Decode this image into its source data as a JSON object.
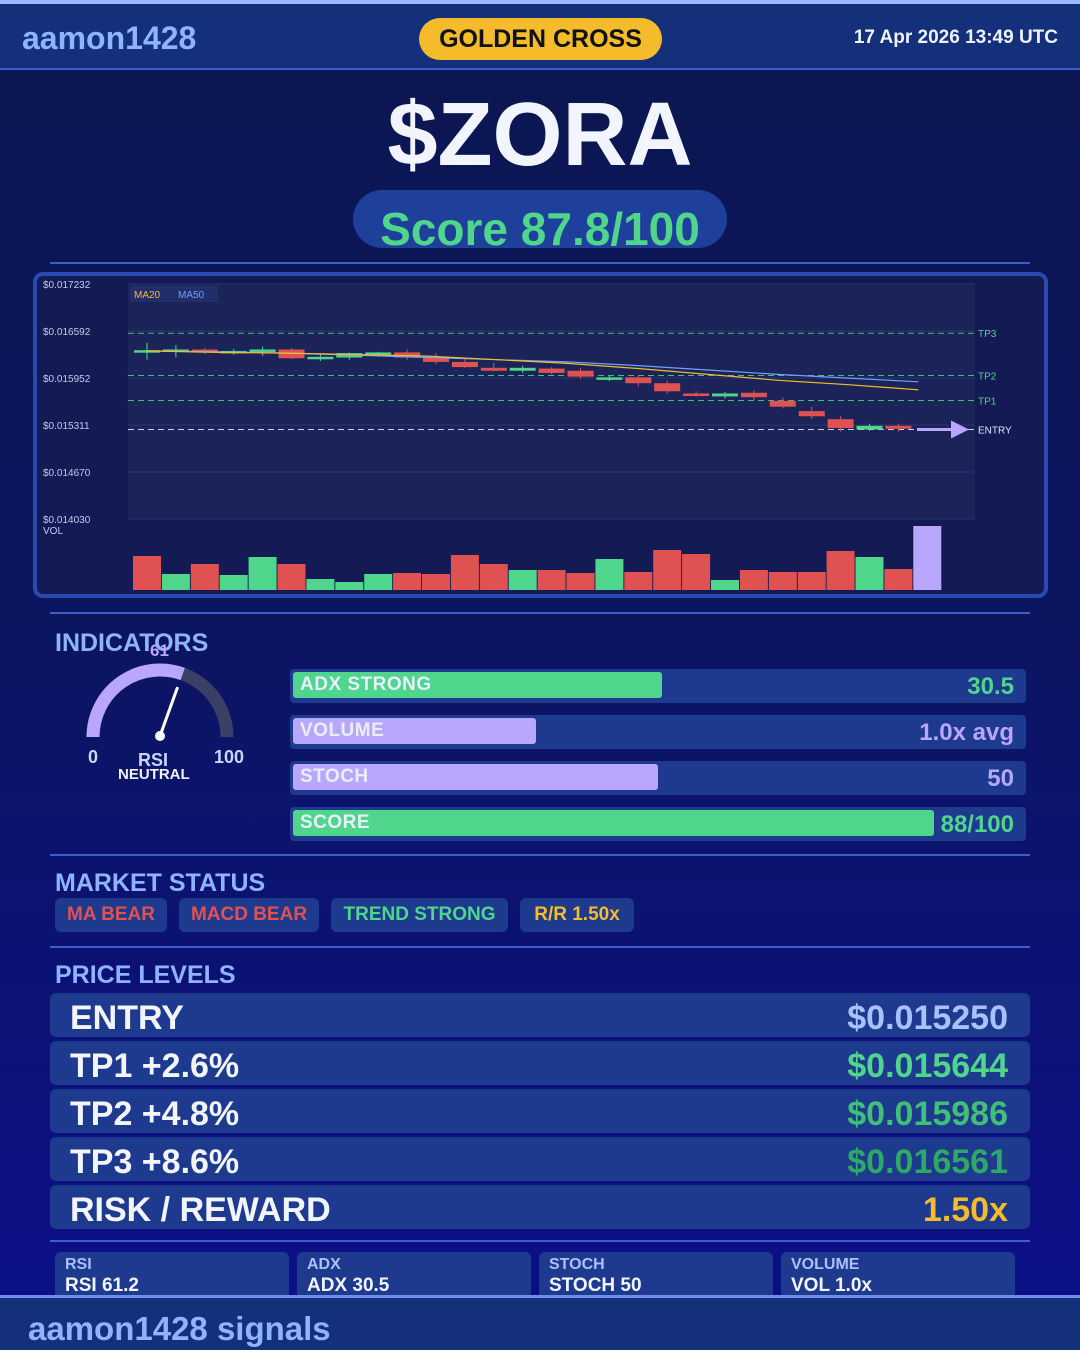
{
  "header": {
    "brand": "aamon1428",
    "signal_badge": "GOLDEN CROSS",
    "datetime": "17 Apr 2026  13:49 UTC"
  },
  "ticker": "$ZORA",
  "score_text": "Score 87.8/100",
  "colors": {
    "accent": "#8fb4ff",
    "green": "#4fd58c",
    "red": "#e05252",
    "yellow": "#f4bc2a",
    "purple": "#b9a6ff"
  },
  "chart_data": {
    "type": "candlestick",
    "y_ticks": [
      "$0.017232",
      "$0.016592",
      "$0.015952",
      "$0.015311",
      "$0.014670",
      "$0.014030"
    ],
    "ylim": [
      0.01403,
      0.017232
    ],
    "legend": [
      "MA20",
      "MA50"
    ],
    "volume_label": "VOL",
    "levels": [
      {
        "name": "TP3",
        "value": 0.016561
      },
      {
        "name": "TP2",
        "value": 0.015986
      },
      {
        "name": "TP1",
        "value": 0.015644
      },
      {
        "name": "ENTRY",
        "value": 0.01525
      }
    ],
    "candles": [
      {
        "o": 0.01633,
        "h": 0.01643,
        "l": 0.0162,
        "c": 0.01633
      },
      {
        "o": 0.01633,
        "h": 0.0164,
        "l": 0.01623,
        "c": 0.01634
      },
      {
        "o": 0.01634,
        "h": 0.01636,
        "l": 0.01628,
        "c": 0.01631
      },
      {
        "o": 0.0163,
        "h": 0.01635,
        "l": 0.01627,
        "c": 0.01632
      },
      {
        "o": 0.01633,
        "h": 0.01638,
        "l": 0.01625,
        "c": 0.01634
      },
      {
        "o": 0.01634,
        "h": 0.01636,
        "l": 0.01621,
        "c": 0.01622
      },
      {
        "o": 0.01622,
        "h": 0.01628,
        "l": 0.01618,
        "c": 0.01624
      },
      {
        "o": 0.01623,
        "h": 0.0163,
        "l": 0.0162,
        "c": 0.01629
      },
      {
        "o": 0.01628,
        "h": 0.01631,
        "l": 0.01624,
        "c": 0.0163
      },
      {
        "o": 0.0163,
        "h": 0.01634,
        "l": 0.0162,
        "c": 0.01623
      },
      {
        "o": 0.01624,
        "h": 0.01629,
        "l": 0.01614,
        "c": 0.01617
      },
      {
        "o": 0.01617,
        "h": 0.01623,
        "l": 0.01609,
        "c": 0.0161
      },
      {
        "o": 0.01609,
        "h": 0.01616,
        "l": 0.01604,
        "c": 0.01605
      },
      {
        "o": 0.01605,
        "h": 0.01612,
        "l": 0.01602,
        "c": 0.01609
      },
      {
        "o": 0.01608,
        "h": 0.0161,
        "l": 0.016,
        "c": 0.01602
      },
      {
        "o": 0.01605,
        "h": 0.01609,
        "l": 0.01594,
        "c": 0.01597
      },
      {
        "o": 0.01594,
        "h": 0.01598,
        "l": 0.01591,
        "c": 0.01596
      },
      {
        "o": 0.01596,
        "h": 0.01599,
        "l": 0.01584,
        "c": 0.01588
      },
      {
        "o": 0.01588,
        "h": 0.01592,
        "l": 0.01574,
        "c": 0.01577
      },
      {
        "o": 0.01574,
        "h": 0.01577,
        "l": 0.0157,
        "c": 0.01572
      },
      {
        "o": 0.0157,
        "h": 0.01576,
        "l": 0.01567,
        "c": 0.01574
      },
      {
        "o": 0.01575,
        "h": 0.01578,
        "l": 0.01565,
        "c": 0.01569
      },
      {
        "o": 0.01564,
        "h": 0.01568,
        "l": 0.01554,
        "c": 0.01556
      },
      {
        "o": 0.0155,
        "h": 0.01556,
        "l": 0.01539,
        "c": 0.01543
      },
      {
        "o": 0.01539,
        "h": 0.01543,
        "l": 0.01522,
        "c": 0.01527
      },
      {
        "o": 0.01525,
        "h": 0.01533,
        "l": 0.01523,
        "c": 0.0153
      },
      {
        "o": 0.0153,
        "h": 0.01533,
        "l": 0.01522,
        "c": 0.01526
      }
    ],
    "ma20": [
      0.01632,
      0.0163,
      0.01629,
      0.01627,
      0.01625,
      0.0162,
      0.01615,
      0.01608,
      0.016,
      0.01592,
      0.01586,
      0.01579
    ],
    "ma50": [
      0.01632,
      0.01631,
      0.01629,
      0.01626,
      0.01623,
      0.0162,
      0.01617,
      0.01612,
      0.01606,
      0.016,
      0.01595,
      0.0159
    ],
    "volumes": [
      {
        "v": 34,
        "up": false
      },
      {
        "v": 16,
        "up": true
      },
      {
        "v": 26,
        "up": false
      },
      {
        "v": 15,
        "up": true
      },
      {
        "v": 33,
        "up": true
      },
      {
        "v": 26,
        "up": false
      },
      {
        "v": 11,
        "up": true
      },
      {
        "v": 8,
        "up": true
      },
      {
        "v": 16,
        "up": true
      },
      {
        "v": 17,
        "up": false
      },
      {
        "v": 16,
        "up": false
      },
      {
        "v": 35,
        "up": false
      },
      {
        "v": 26,
        "up": false
      },
      {
        "v": 20,
        "up": true
      },
      {
        "v": 20,
        "up": false
      },
      {
        "v": 17,
        "up": false
      },
      {
        "v": 31,
        "up": true
      },
      {
        "v": 18,
        "up": false
      },
      {
        "v": 40,
        "up": false
      },
      {
        "v": 36,
        "up": false
      },
      {
        "v": 10,
        "up": true
      },
      {
        "v": 20,
        "up": false
      },
      {
        "v": 18,
        "up": false
      },
      {
        "v": 18,
        "up": false
      },
      {
        "v": 39,
        "up": false
      },
      {
        "v": 33,
        "up": true
      },
      {
        "v": 21,
        "up": false
      },
      {
        "v": 64,
        "up": null
      }
    ]
  },
  "indicators": {
    "title": "INDICATORS",
    "rsi_gauge": {
      "value": 61,
      "value_text": "61",
      "min_text": "0",
      "max_text": "100",
      "label": "RSI",
      "state": "NEUTRAL"
    },
    "bars": [
      {
        "label": "ADX  STRONG",
        "value_text": "30.5",
        "fill": 0.505,
        "fill_color": "#4fd58c",
        "value_color": "#4fd58c"
      },
      {
        "label": "VOLUME",
        "value_text": "1.0x avg",
        "fill": 0.333,
        "fill_color": "#b9a6ff",
        "value_color": "#b9a6ff"
      },
      {
        "label": "STOCH",
        "value_text": "50",
        "fill": 0.5,
        "fill_color": "#b9a6ff",
        "value_color": "#b9a6ff"
      },
      {
        "label": "SCORE",
        "value_text": "88/100",
        "fill": 0.878,
        "fill_color": "#4fd58c",
        "value_color": "#4fd58c"
      }
    ]
  },
  "market_status": {
    "title": "MARKET STATUS",
    "tags": [
      {
        "text": "MA BEAR",
        "color": "#e05252"
      },
      {
        "text": "MACD BEAR",
        "color": "#e05252"
      },
      {
        "text": "TREND STRONG",
        "color": "#4fd58c"
      },
      {
        "text": "R/R  1.50x",
        "color": "#f4bc2a"
      }
    ]
  },
  "price_levels": {
    "title": "PRICE LEVELS",
    "rows": [
      {
        "name": "ENTRY",
        "value": "$0.015250",
        "color": "#a9c2ff"
      },
      {
        "name": "TP1  +2.6%",
        "value": "$0.015644",
        "color": "#4fd58c"
      },
      {
        "name": "TP2  +4.8%",
        "value": "$0.015986",
        "color": "#3fbf78"
      },
      {
        "name": "TP3  +8.6%",
        "value": "$0.016561",
        "color": "#2da865"
      },
      {
        "name": "RISK / REWARD",
        "value": "1.50x",
        "color": "#f4bc2a"
      }
    ]
  },
  "summary": [
    {
      "label": "RSI",
      "value": "RSI 61.2"
    },
    {
      "label": "ADX",
      "value": "ADX 30.5"
    },
    {
      "label": "STOCH",
      "value": "STOCH 50"
    },
    {
      "label": "VOLUME",
      "value": "VOL 1.0x"
    }
  ],
  "footer": {
    "text": "aamon1428 signals"
  }
}
